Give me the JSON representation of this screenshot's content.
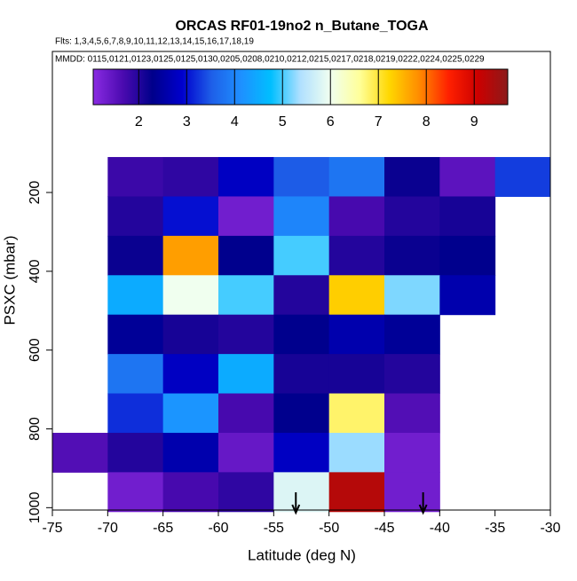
{
  "chart_data": {
    "type": "heatmap",
    "title": "ORCAS RF01-19no2 n_Butane_TOGA",
    "subtitle": "Flts: 1,3,4,5,6,7,8,9,10,11,12,13,14,15,16,17,18,19",
    "note": "MMDD: 0115,0121,0123,0125,0125,0130,0205,0208,0210,0212,0215,0217,0218,0219,0222,0224,0225,0229",
    "x_label": "Latitude (deg N)",
    "y_label": "PSXC (mbar)",
    "x_edges": [
      -75,
      -70,
      -65,
      -60,
      -55,
      -50,
      -45,
      -40,
      -35,
      -30
    ],
    "y_edges": [
      110,
      210,
      310,
      410,
      510,
      610,
      710,
      810,
      910,
      1010
    ],
    "z": [
      [
        null,
        1.8,
        1.9,
        2.8,
        3.5,
        3.8,
        2.2,
        1.5,
        3.3
      ],
      [
        null,
        2.0,
        3.0,
        1.3,
        4.0,
        1.7,
        2.0,
        2.1,
        null
      ],
      [
        null,
        2.2,
        7.7,
        2.3,
        5.0,
        2.0,
        2.2,
        2.3,
        null
      ],
      [
        null,
        4.5,
        6.0,
        5.0,
        2.0,
        7.3,
        5.2,
        2.6,
        null
      ],
      [
        null,
        2.4,
        2.1,
        2.0,
        2.3,
        2.6,
        2.4,
        null,
        null
      ],
      [
        null,
        3.8,
        2.8,
        4.5,
        2.1,
        2.1,
        2.0,
        null,
        null
      ],
      [
        null,
        3.2,
        4.2,
        1.7,
        2.3,
        6.8,
        1.6,
        null,
        null
      ],
      [
        1.6,
        2.0,
        2.6,
        1.4,
        2.8,
        5.3,
        1.3,
        null,
        null
      ],
      [
        null,
        1.3,
        1.7,
        1.9,
        5.8,
        9.3,
        1.3,
        null,
        null
      ]
    ],
    "zlim": [
      1.05,
      9.7
    ],
    "zticks": [
      2,
      3,
      4,
      5,
      6,
      7,
      8,
      9
    ],
    "colorscale": [
      "#8a2be2",
      "#4b0ab0",
      "#00008b",
      "#0000cd",
      "#1e5fe8",
      "#1e90ff",
      "#00bfff",
      "#b0e0ff",
      "#f0fff0",
      "#ffff99",
      "#ffd700",
      "#ff8c00",
      "#ff2000",
      "#cc0000",
      "#8b1a1a"
    ],
    "xlim": [
      -75,
      -30
    ],
    "xticks": [
      -75,
      -70,
      -65,
      -60,
      -55,
      -50,
      -45,
      -40,
      -35,
      -30
    ],
    "ylim": [
      1006,
      -158
    ],
    "yticks": [
      200,
      400,
      600,
      800,
      1000
    ],
    "arrows_x": [
      -53,
      -41.5
    ]
  }
}
